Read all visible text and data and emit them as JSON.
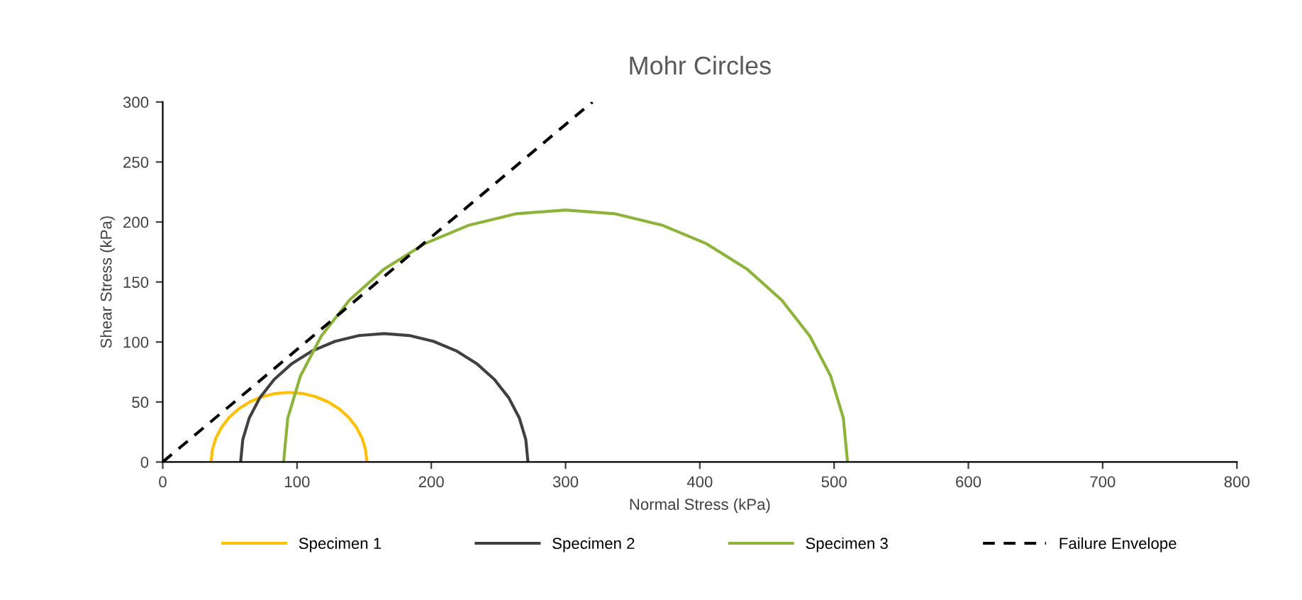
{
  "chart_data": {
    "type": "line",
    "title": "Mohr Circles",
    "xlabel": "Normal Stress (kPa)",
    "ylabel": "Shear Stress (kPa)",
    "xlim": [
      0,
      800
    ],
    "xticks": [
      0,
      100,
      200,
      300,
      400,
      500,
      600,
      700,
      800
    ],
    "ylim": [
      0,
      300
    ],
    "yticks": [
      0,
      50,
      100,
      150,
      200,
      250,
      300
    ],
    "grid": false,
    "legend": "bottom",
    "marker": "none",
    "series": [
      {
        "name": "Specimen 1",
        "color": "#ffc000",
        "line_style": "solid",
        "x": [
          36,
          36.9,
          39.5,
          43.8,
          49.6,
          56.7,
          65,
          74.2,
          83.9,
          94,
          104.1,
          113.8,
          123,
          131.3,
          138.4,
          144.2,
          148.5,
          151.1,
          152
        ],
        "values": [
          0,
          10.1,
          19.8,
          29,
          37.3,
          44.4,
          50.2,
          54.5,
          57.1,
          58,
          57.1,
          54.5,
          50.2,
          44.4,
          37.3,
          29,
          19.8,
          10.1,
          0
        ]
      },
      {
        "name": "Specimen 2",
        "color": "#404040",
        "line_style": "solid",
        "x": [
          58,
          59.6,
          64.4,
          72.3,
          83,
          96.2,
          111.5,
          128.4,
          146.4,
          165,
          183.6,
          201.6,
          218.5,
          233.8,
          247,
          257.7,
          265.6,
          270.4,
          272
        ],
        "values": [
          0,
          18.6,
          36.6,
          53.5,
          68.8,
          82,
          92.7,
          100.6,
          105.4,
          107,
          105.4,
          100.6,
          92.7,
          82,
          68.8,
          53.5,
          36.6,
          18.6,
          0
        ]
      },
      {
        "name": "Specimen 3",
        "color": "#8db33a",
        "line_style": "solid",
        "x": [
          90,
          93.1,
          102.6,
          118.1,
          139.1,
          165,
          195,
          228.2,
          263.5,
          300,
          336.5,
          371.8,
          405,
          435,
          460.9,
          481.9,
          497.4,
          506.9,
          510
        ],
        "values": [
          0,
          36.5,
          71.8,
          105,
          135,
          160.9,
          181.9,
          197.4,
          206.9,
          210,
          206.9,
          197.4,
          181.9,
          160.9,
          135,
          105,
          71.8,
          36.5,
          0
        ]
      },
      {
        "name": "Failure Envelope",
        "color": "#000000",
        "line_style": "dashed",
        "x": [
          0,
          320
        ],
        "values": [
          0,
          300
        ]
      }
    ]
  }
}
